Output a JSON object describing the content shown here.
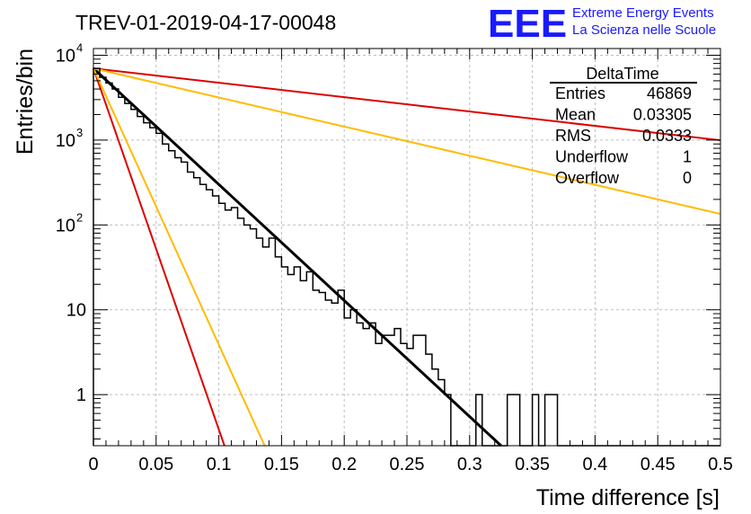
{
  "chart_data": {
    "type": "line",
    "title": "TREV-01-2019-04-17-00048",
    "xlabel": "Time difference [s]",
    "ylabel": "Entries/bin",
    "xlim": [
      0,
      0.5
    ],
    "ylim": [
      0.25,
      12000
    ],
    "y_scale": "log",
    "grid": true,
    "x_ticks": [
      "0",
      "0.05",
      "0.1",
      "0.15",
      "0.2",
      "0.25",
      "0.3",
      "0.35",
      "0.4",
      "0.45",
      "0.5"
    ],
    "y_ticks": [
      {
        "value": 1,
        "label": "1"
      },
      {
        "value": 10,
        "label": "10"
      },
      {
        "value": 100,
        "label": "10",
        "exp": "2"
      },
      {
        "value": 1000,
        "label": "10",
        "exp": "3"
      },
      {
        "value": 10000,
        "label": "10",
        "exp": "4"
      }
    ],
    "histogram": {
      "name": "DeltaTime",
      "bin_width": 0.005,
      "values": [
        7000,
        5500,
        4700,
        4000,
        3200,
        2700,
        2300,
        1900,
        1600,
        1400,
        1200,
        900,
        750,
        620,
        550,
        420,
        360,
        300,
        260,
        220,
        180,
        150,
        160,
        120,
        100,
        90,
        70,
        55,
        70,
        42,
        32,
        26,
        32,
        22,
        28,
        17,
        16,
        13,
        12,
        17,
        8,
        10,
        7,
        6,
        7,
        4,
        5,
        5,
        6,
        4,
        3.5,
        5,
        5,
        3,
        2,
        1.5,
        1,
        0,
        0,
        0,
        0,
        1,
        0,
        0,
        0,
        0.1,
        1,
        1,
        0,
        0,
        1,
        0,
        1,
        1,
        0,
        0,
        0,
        0,
        0,
        0,
        0,
        0,
        0,
        0,
        0,
        0,
        0,
        0,
        0,
        0,
        0,
        0,
        0,
        0,
        0,
        0,
        0,
        0,
        0,
        0
      ]
    },
    "fits": [
      {
        "color": "#000000",
        "y0": 7000,
        "slope": -31.5
      },
      {
        "color": "#dd0000",
        "y0": 7000,
        "slope": -98.0
      },
      {
        "color": "#ffbb00",
        "y0": 7000,
        "slope": -75.0
      },
      {
        "color": "#dd0000",
        "y0": 7000,
        "slope": -3.9
      },
      {
        "color": "#ffbb00",
        "y0": 7000,
        "slope": -7.9
      }
    ],
    "stats_box": {
      "title": "DeltaTime",
      "rows": [
        {
          "label": "Entries",
          "value": "46869"
        },
        {
          "label": "Mean",
          "value": "0.03305"
        },
        {
          "label": "RMS",
          "value": "0.0333"
        },
        {
          "label": "Underflow",
          "value": "1"
        },
        {
          "label": "Overflow",
          "value": "0"
        }
      ]
    }
  },
  "logo": {
    "mark": "EEE",
    "line1": "Extreme Energy Events",
    "line2": "La Scienza nelle Scuole",
    "color": "#1a1aff"
  }
}
